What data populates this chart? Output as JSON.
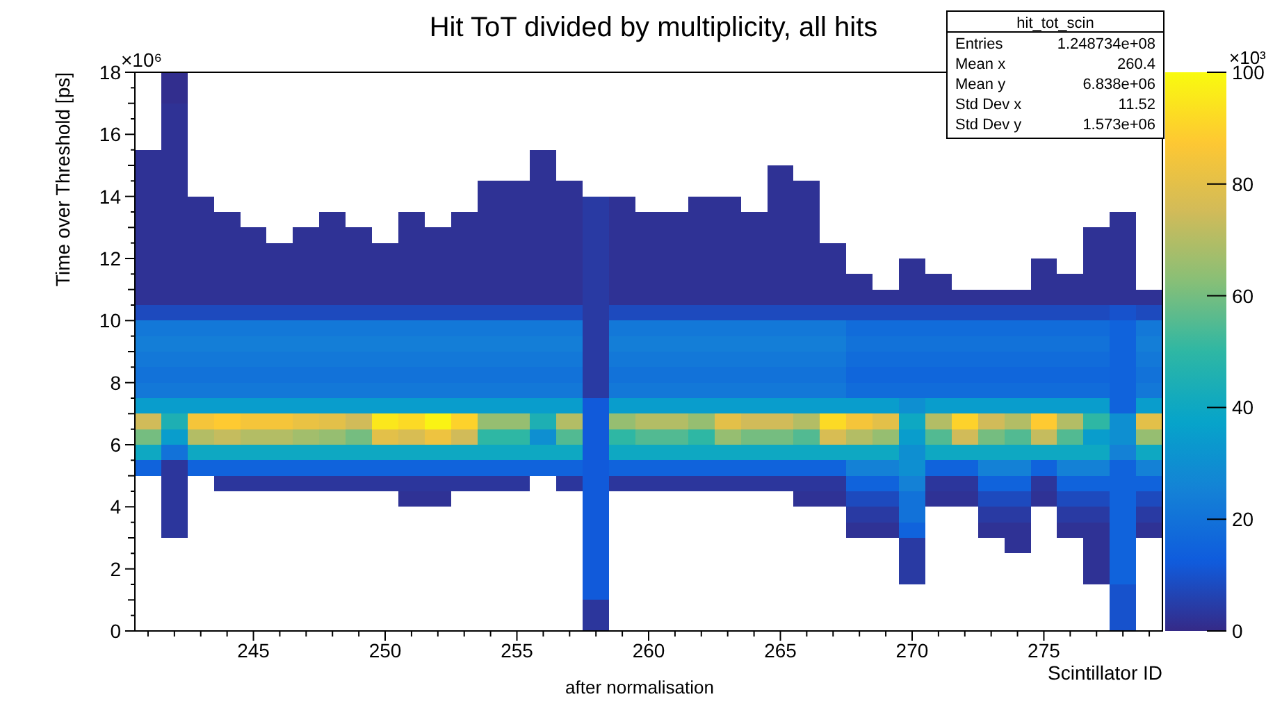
{
  "chart_data": {
    "type": "heatmap",
    "title": "Hit ToT divided by multiplicity, all hits",
    "xlabel": "Scintillator ID",
    "ylabel": "Time over Threshold [ps]",
    "annotations": [
      "×10⁶",
      "×10³",
      "after normalisation",
      "hit_tot_scin",
      "Entries",
      "1.248734e+08",
      "Mean x",
      "260.4",
      "Mean y",
      "6.838e+06",
      "Std Dev x",
      "11.52",
      "Std Dev y",
      "1.573e+06"
    ],
    "x": [
      241,
      242,
      243,
      244,
      245,
      246,
      247,
      248,
      249,
      250,
      251,
      252,
      253,
      254,
      255,
      256,
      257,
      258,
      259,
      260,
      261,
      262,
      263,
      264,
      265,
      266,
      267,
      268,
      269,
      270,
      271,
      272,
      273,
      274,
      275,
      276,
      277,
      278,
      279
    ],
    "xlim": [
      240.5,
      279.5
    ],
    "xticks": [
      {
        "value": 241,
        "label": null
      },
      {
        "value": 242,
        "label": null
      },
      {
        "value": 243,
        "label": null
      },
      {
        "value": 244,
        "label": null
      },
      245,
      {
        "value": 246,
        "label": null
      },
      {
        "value": 247,
        "label": null
      },
      {
        "value": 248,
        "label": null
      },
      {
        "value": 249,
        "label": null
      },
      250,
      {
        "value": 251,
        "label": null
      },
      {
        "value": 252,
        "label": null
      },
      {
        "value": 253,
        "label": null
      },
      {
        "value": 254,
        "label": null
      },
      255,
      {
        "value": 256,
        "label": null
      },
      {
        "value": 257,
        "label": null
      },
      {
        "value": 258,
        "label": null
      },
      {
        "value": 259,
        "label": null
      },
      260,
      {
        "value": 261,
        "label": null
      },
      {
        "value": 262,
        "label": null
      },
      {
        "value": 263,
        "label": null
      },
      {
        "value": 264,
        "label": null
      },
      265,
      {
        "value": 266,
        "label": null
      },
      {
        "value": 267,
        "label": null
      },
      {
        "value": 268,
        "label": null
      },
      {
        "value": 269,
        "label": null
      },
      270,
      {
        "value": 271,
        "label": null
      },
      {
        "value": 272,
        "label": null
      },
      {
        "value": 273,
        "label": null
      },
      {
        "value": 274,
        "label": null
      },
      275,
      {
        "value": 276,
        "label": null
      },
      {
        "value": 277,
        "label": null
      },
      {
        "value": 278,
        "label": null
      },
      {
        "value": 279,
        "label": null
      }
    ],
    "ylim": [
      0,
      18
    ],
    "yticks": [
      0,
      {
        "value": 0.5,
        "label": null
      },
      {
        "value": 1,
        "label": null
      },
      {
        "value": 1.5,
        "label": null
      },
      2,
      {
        "value": 2.5,
        "label": null
      },
      {
        "value": 3,
        "label": null
      },
      {
        "value": 3.5,
        "label": null
      },
      4,
      {
        "value": 4.5,
        "label": null
      },
      {
        "value": 5,
        "label": null
      },
      {
        "value": 5.5,
        "label": null
      },
      6,
      {
        "value": 6.5,
        "label": null
      },
      {
        "value": 7,
        "label": null
      },
      {
        "value": 7.5,
        "label": null
      },
      8,
      {
        "value": 8.5,
        "label": null
      },
      {
        "value": 9,
        "label": null
      },
      {
        "value": 9.5,
        "label": null
      },
      10,
      {
        "value": 10.5,
        "label": null
      },
      {
        "value": 11,
        "label": null
      },
      {
        "value": 11.5,
        "label": null
      },
      12,
      {
        "value": 12.5,
        "label": null
      },
      {
        "value": 13,
        "label": null
      },
      {
        "value": 13.5,
        "label": null
      },
      14,
      {
        "value": 14.5,
        "label": null
      },
      {
        "value": 15,
        "label": null
      },
      {
        "value": 15.5,
        "label": null
      },
      16,
      {
        "value": 16.5,
        "label": null
      },
      {
        "value": 17,
        "label": null
      },
      {
        "value": 17.5,
        "label": null
      },
      18
    ],
    "clim": [
      0,
      100
    ],
    "cticks": [
      0,
      20,
      40,
      60,
      80,
      100
    ],
    "cells": [
      [
        null,
        1,
        null,
        null,
        null,
        null,
        null,
        null,
        null,
        null,
        null,
        null,
        null,
        null,
        null,
        null,
        null,
        null,
        null,
        null,
        null,
        null,
        null,
        null,
        null,
        null,
        null,
        null,
        null,
        null,
        null,
        null,
        null,
        null,
        null,
        null,
        null,
        null,
        null
      ],
      [
        null,
        1,
        null,
        null,
        null,
        null,
        null,
        null,
        null,
        null,
        null,
        null,
        null,
        null,
        null,
        null,
        null,
        null,
        null,
        null,
        null,
        null,
        null,
        null,
        null,
        null,
        null,
        null,
        null,
        null,
        null,
        null,
        null,
        null,
        null,
        null,
        null,
        null,
        null
      ],
      [
        null,
        2,
        null,
        null,
        null,
        null,
        null,
        null,
        null,
        null,
        null,
        null,
        null,
        null,
        null,
        null,
        null,
        null,
        null,
        null,
        null,
        null,
        null,
        null,
        null,
        null,
        null,
        null,
        null,
        null,
        null,
        null,
        null,
        null,
        null,
        null,
        null,
        null,
        null
      ],
      [
        null,
        2,
        null,
        null,
        null,
        null,
        null,
        null,
        null,
        null,
        null,
        null,
        null,
        null,
        null,
        null,
        null,
        null,
        null,
        null,
        null,
        null,
        null,
        null,
        null,
        null,
        null,
        null,
        null,
        null,
        null,
        null,
        null,
        null,
        null,
        null,
        null,
        null,
        null
      ],
      [
        null,
        2,
        null,
        null,
        null,
        null,
        null,
        null,
        null,
        null,
        null,
        null,
        null,
        null,
        null,
        null,
        null,
        null,
        null,
        null,
        null,
        null,
        null,
        null,
        null,
        null,
        null,
        null,
        null,
        null,
        null,
        null,
        null,
        null,
        null,
        null,
        null,
        null,
        null
      ],
      [
        2,
        2,
        null,
        null,
        null,
        null,
        null,
        null,
        null,
        null,
        null,
        null,
        null,
        null,
        null,
        2,
        null,
        null,
        null,
        null,
        null,
        null,
        null,
        null,
        null,
        null,
        null,
        null,
        null,
        null,
        null,
        null,
        null,
        null,
        null,
        null,
        null,
        null,
        null
      ],
      [
        2,
        2,
        null,
        null,
        null,
        null,
        null,
        null,
        null,
        null,
        null,
        null,
        null,
        null,
        null,
        2,
        null,
        null,
        null,
        null,
        null,
        null,
        null,
        null,
        2,
        null,
        null,
        null,
        null,
        null,
        null,
        null,
        null,
        null,
        null,
        null,
        null,
        null,
        null
      ],
      [
        2,
        2,
        null,
        null,
        null,
        null,
        null,
        null,
        null,
        null,
        null,
        null,
        null,
        2,
        2,
        2,
        2,
        null,
        null,
        null,
        null,
        null,
        null,
        null,
        2,
        2,
        null,
        null,
        null,
        null,
        null,
        null,
        null,
        null,
        null,
        null,
        null,
        null,
        null
      ],
      [
        2,
        2,
        2,
        null,
        null,
        null,
        null,
        null,
        null,
        null,
        null,
        null,
        null,
        2,
        2,
        2,
        2,
        4,
        2,
        null,
        null,
        2,
        2,
        null,
        2,
        2,
        null,
        null,
        null,
        null,
        null,
        null,
        null,
        null,
        null,
        null,
        null,
        null,
        null
      ],
      [
        2,
        2,
        2,
        2,
        null,
        null,
        null,
        2,
        null,
        null,
        2,
        null,
        2,
        2,
        2,
        2,
        2,
        4,
        2,
        2,
        2,
        2,
        2,
        2,
        2,
        2,
        null,
        null,
        null,
        null,
        null,
        null,
        null,
        null,
        null,
        null,
        null,
        2,
        null
      ],
      [
        2,
        2,
        2,
        2,
        2,
        null,
        2,
        2,
        2,
        null,
        2,
        2,
        2,
        2,
        2,
        2,
        2,
        4,
        2,
        2,
        2,
        2,
        2,
        2,
        2,
        2,
        null,
        null,
        null,
        null,
        null,
        null,
        null,
        null,
        null,
        null,
        2,
        2,
        null
      ],
      [
        2,
        2,
        2,
        2,
        2,
        2,
        2,
        2,
        2,
        2,
        2,
        2,
        2,
        2,
        2,
        2,
        2,
        4,
        2,
        2,
        2,
        2,
        2,
        2,
        2,
        2,
        2,
        null,
        null,
        null,
        null,
        null,
        null,
        null,
        null,
        null,
        2,
        2,
        null
      ],
      [
        2,
        2,
        2,
        2,
        2,
        2,
        2,
        2,
        2,
        2,
        2,
        2,
        2,
        2,
        2,
        2,
        2,
        4,
        2,
        2,
        2,
        2,
        2,
        2,
        2,
        2,
        2,
        null,
        null,
        2,
        null,
        null,
        null,
        null,
        2,
        null,
        2,
        2,
        null
      ],
      [
        2,
        2,
        2,
        2,
        2,
        2,
        2,
        2,
        2,
        2,
        2,
        2,
        2,
        2,
        2,
        2,
        2,
        4,
        2,
        2,
        2,
        2,
        2,
        2,
        2,
        2,
        2,
        2,
        null,
        2,
        2,
        null,
        null,
        null,
        2,
        2,
        2,
        2,
        null
      ],
      [
        2,
        2,
        2,
        2,
        2,
        2,
        2,
        2,
        2,
        2,
        2,
        2,
        2,
        2,
        2,
        2,
        2,
        4,
        2,
        2,
        2,
        2,
        2,
        2,
        2,
        2,
        2,
        2,
        2,
        2,
        2,
        2,
        2,
        2,
        2,
        2,
        2,
        2,
        2
      ],
      [
        8,
        8,
        8,
        8,
        8,
        8,
        8,
        8,
        8,
        8,
        8,
        8,
        8,
        8,
        8,
        8,
        8,
        4,
        8,
        8,
        8,
        8,
        8,
        8,
        8,
        8,
        8,
        8,
        8,
        8,
        8,
        8,
        8,
        8,
        8,
        8,
        8,
        10,
        8
      ],
      [
        22,
        22,
        22,
        22,
        22,
        22,
        22,
        22,
        22,
        22,
        22,
        22,
        22,
        22,
        22,
        22,
        22,
        4,
        22,
        22,
        22,
        22,
        22,
        22,
        22,
        22,
        22,
        18,
        18,
        18,
        18,
        18,
        18,
        18,
        18,
        18,
        18,
        15,
        22
      ],
      [
        24,
        24,
        24,
        24,
        24,
        24,
        24,
        24,
        24,
        24,
        24,
        24,
        24,
        24,
        24,
        24,
        24,
        4,
        24,
        24,
        24,
        24,
        24,
        24,
        24,
        24,
        24,
        20,
        20,
        20,
        20,
        20,
        20,
        20,
        20,
        20,
        20,
        15,
        24
      ],
      [
        22,
        22,
        22,
        22,
        22,
        22,
        22,
        22,
        22,
        22,
        22,
        22,
        22,
        22,
        22,
        22,
        22,
        4,
        22,
        22,
        22,
        22,
        22,
        22,
        22,
        22,
        22,
        18,
        18,
        18,
        18,
        18,
        18,
        18,
        18,
        18,
        18,
        15,
        22
      ],
      [
        20,
        20,
        20,
        20,
        20,
        20,
        20,
        20,
        20,
        20,
        20,
        20,
        20,
        20,
        20,
        20,
        20,
        4,
        20,
        20,
        20,
        20,
        20,
        20,
        20,
        20,
        20,
        16,
        16,
        16,
        16,
        16,
        16,
        16,
        16,
        16,
        16,
        15,
        20
      ],
      [
        22,
        22,
        22,
        22,
        22,
        22,
        22,
        22,
        22,
        22,
        22,
        22,
        22,
        22,
        22,
        22,
        22,
        4,
        22,
        22,
        22,
        22,
        22,
        22,
        22,
        22,
        22,
        18,
        18,
        18,
        18,
        18,
        18,
        18,
        18,
        18,
        18,
        15,
        22
      ],
      [
        35,
        35,
        35,
        35,
        35,
        35,
        35,
        35,
        35,
        35,
        35,
        35,
        35,
        35,
        35,
        35,
        35,
        12,
        35,
        35,
        35,
        35,
        35,
        35,
        35,
        35,
        35,
        35,
        35,
        30,
        35,
        35,
        35,
        35,
        35,
        35,
        35,
        15,
        35
      ],
      [
        75,
        45,
        85,
        88,
        85,
        85,
        82,
        80,
        75,
        95,
        92,
        98,
        90,
        65,
        65,
        45,
        70,
        12,
        65,
        70,
        70,
        65,
        80,
        75,
        75,
        70,
        92,
        85,
        80,
        40,
        70,
        90,
        75,
        70,
        88,
        70,
        50,
        30,
        80
      ],
      [
        60,
        35,
        70,
        73,
        70,
        70,
        67,
        65,
        60,
        80,
        77,
        83,
        75,
        50,
        50,
        30,
        55,
        12,
        50,
        55,
        55,
        50,
        65,
        60,
        60,
        55,
        77,
        70,
        65,
        35,
        55,
        75,
        60,
        55,
        73,
        55,
        35,
        30,
        65
      ],
      [
        40,
        20,
        40,
        40,
        40,
        40,
        40,
        40,
        40,
        40,
        40,
        40,
        40,
        40,
        40,
        40,
        40,
        12,
        40,
        40,
        40,
        40,
        40,
        40,
        40,
        40,
        40,
        40,
        40,
        30,
        40,
        40,
        40,
        40,
        40,
        40,
        40,
        25,
        40
      ],
      [
        15,
        3,
        15,
        15,
        15,
        15,
        15,
        15,
        15,
        15,
        15,
        15,
        15,
        15,
        15,
        15,
        15,
        12,
        15,
        15,
        15,
        15,
        15,
        15,
        15,
        15,
        15,
        25,
        25,
        30,
        15,
        15,
        25,
        25,
        15,
        25,
        25,
        15,
        25
      ],
      [
        null,
        3,
        null,
        3,
        3,
        3,
        3,
        3,
        3,
        3,
        3,
        3,
        3,
        3,
        3,
        null,
        3,
        12,
        3,
        3,
        3,
        3,
        3,
        3,
        3,
        3,
        3,
        15,
        15,
        25,
        3,
        3,
        15,
        15,
        3,
        15,
        15,
        15,
        15
      ],
      [
        null,
        3,
        null,
        null,
        null,
        null,
        null,
        null,
        null,
        null,
        2,
        2,
        null,
        null,
        null,
        null,
        null,
        12,
        null,
        null,
        null,
        null,
        null,
        null,
        null,
        2,
        2,
        8,
        8,
        20,
        2,
        2,
        8,
        8,
        2,
        8,
        8,
        15,
        8
      ],
      [
        null,
        3,
        null,
        null,
        null,
        null,
        null,
        null,
        null,
        null,
        null,
        null,
        null,
        null,
        null,
        null,
        null,
        12,
        null,
        null,
        null,
        null,
        null,
        null,
        null,
        null,
        null,
        4,
        4,
        20,
        null,
        null,
        4,
        4,
        null,
        4,
        4,
        15,
        4
      ],
      [
        null,
        3,
        null,
        null,
        null,
        null,
        null,
        null,
        null,
        null,
        null,
        null,
        null,
        null,
        null,
        null,
        null,
        12,
        null,
        null,
        null,
        null,
        null,
        null,
        null,
        null,
        null,
        2,
        2,
        15,
        null,
        null,
        2,
        2,
        null,
        2,
        2,
        15,
        2
      ],
      [
        null,
        null,
        null,
        null,
        null,
        null,
        null,
        null,
        null,
        null,
        null,
        null,
        null,
        null,
        null,
        null,
        null,
        12,
        null,
        null,
        null,
        null,
        null,
        null,
        null,
        null,
        null,
        null,
        null,
        4,
        null,
        null,
        null,
        2,
        null,
        null,
        2,
        15,
        null
      ],
      [
        null,
        null,
        null,
        null,
        null,
        null,
        null,
        null,
        null,
        null,
        null,
        null,
        null,
        null,
        null,
        null,
        null,
        12,
        null,
        null,
        null,
        null,
        null,
        null,
        null,
        null,
        null,
        null,
        null,
        4,
        null,
        null,
        null,
        null,
        null,
        null,
        2,
        15,
        null
      ],
      [
        null,
        null,
        null,
        null,
        null,
        null,
        null,
        null,
        null,
        null,
        null,
        null,
        null,
        null,
        null,
        null,
        null,
        12,
        null,
        null,
        null,
        null,
        null,
        null,
        null,
        null,
        null,
        null,
        null,
        4,
        null,
        null,
        null,
        null,
        null,
        null,
        2,
        15,
        null
      ],
      [
        null,
        null,
        null,
        null,
        null,
        null,
        null,
        null,
        null,
        null,
        null,
        null,
        null,
        null,
        null,
        null,
        null,
        12,
        null,
        null,
        null,
        null,
        null,
        null,
        null,
        null,
        null,
        null,
        null,
        null,
        null,
        null,
        null,
        null,
        null,
        null,
        null,
        10,
        null
      ],
      [
        null,
        null,
        null,
        null,
        null,
        null,
        null,
        null,
        null,
        null,
        null,
        null,
        null,
        null,
        null,
        null,
        null,
        3,
        null,
        null,
        null,
        null,
        null,
        null,
        null,
        null,
        null,
        null,
        null,
        null,
        null,
        null,
        null,
        null,
        null,
        null,
        null,
        10,
        null
      ],
      [
        null,
        null,
        null,
        null,
        null,
        null,
        null,
        null,
        null,
        null,
        null,
        null,
        null,
        null,
        null,
        null,
        null,
        3,
        null,
        null,
        null,
        null,
        null,
        null,
        null,
        null,
        null,
        null,
        null,
        null,
        null,
        null,
        null,
        null,
        null,
        null,
        null,
        10,
        null
      ]
    ]
  }
}
